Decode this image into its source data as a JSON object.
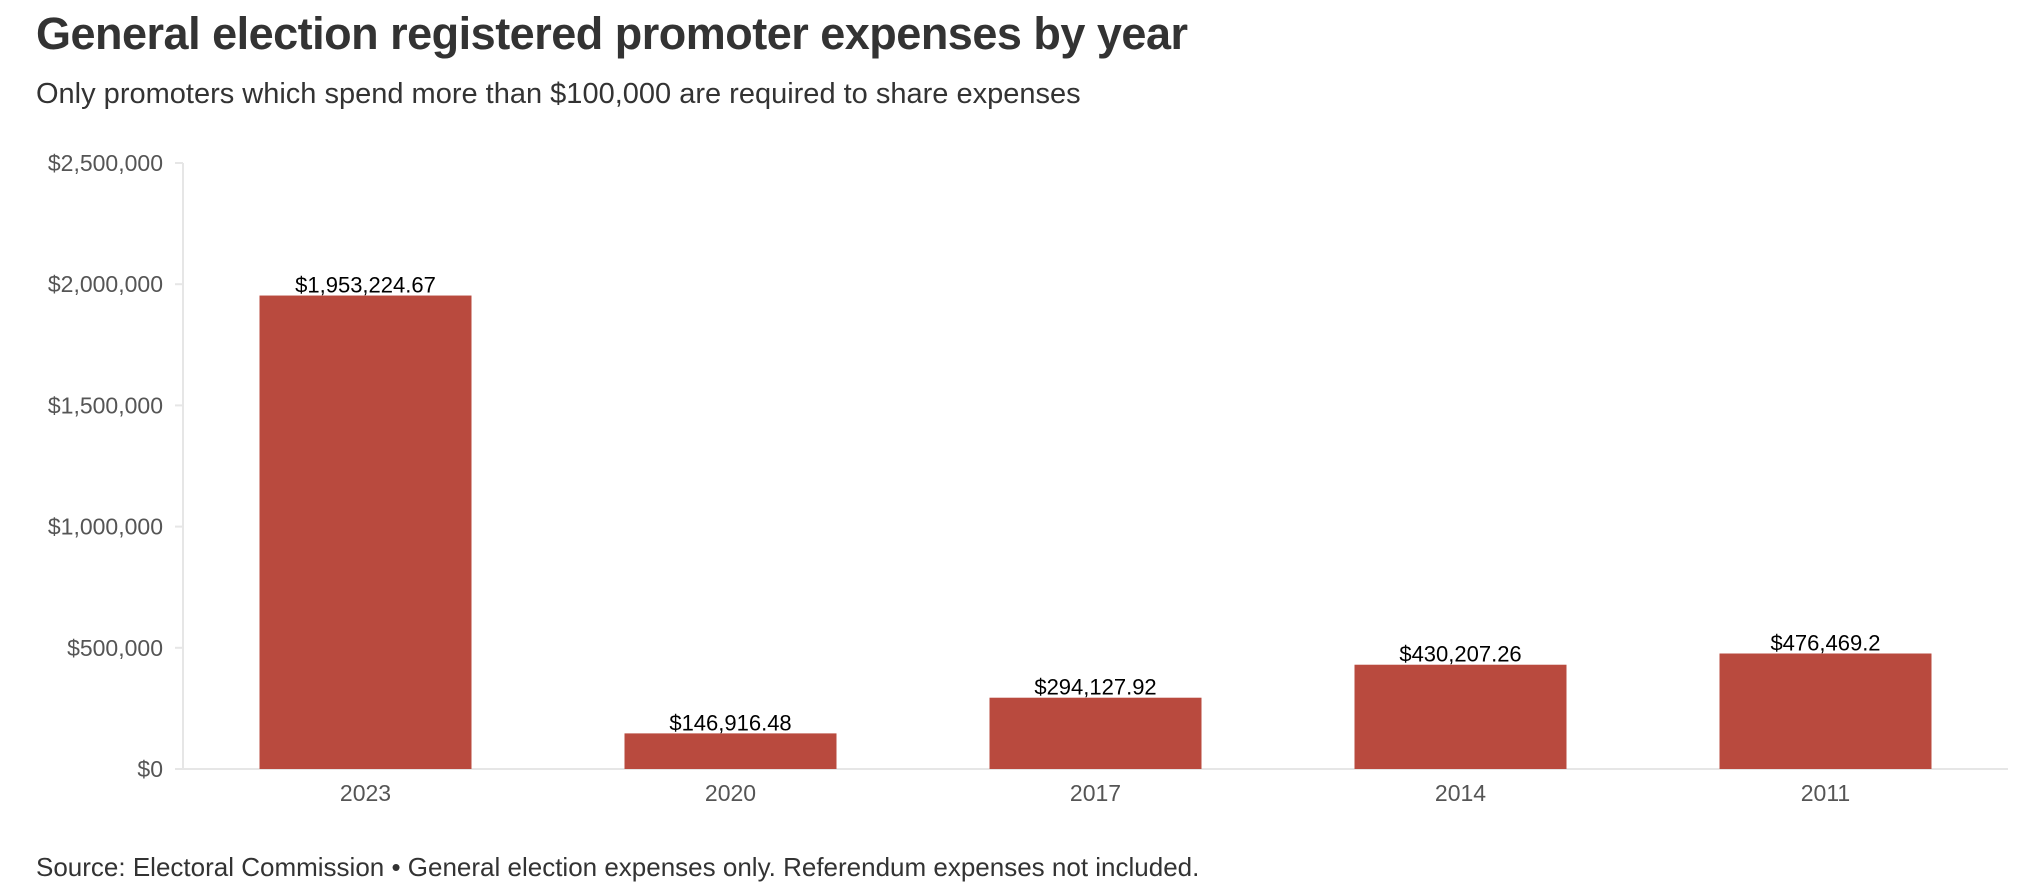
{
  "title": "General election registered promoter expenses by year",
  "subtitle": "Only promoters which spend more than $100,000 are required to share expenses",
  "source": "Source: Electoral Commission • General election expenses only. Referendum expenses not included.",
  "colors": {
    "bar": "#b94a3e",
    "axis": "#e6e6e6",
    "text": "#333333"
  },
  "chart_data": {
    "type": "bar",
    "title": "General election registered promoter expenses by year",
    "subtitle": "Only promoters which spend more than $100,000 are required to share expenses",
    "xlabel": "",
    "ylabel": "",
    "categories": [
      "2023",
      "2020",
      "2017",
      "2014",
      "2011"
    ],
    "values": [
      1953224.67,
      146916.48,
      294127.92,
      430207.26,
      476469.2
    ],
    "value_labels": [
      "$1,953,224.67",
      "$146,916.48",
      "$294,127.92",
      "$430,207.26",
      "$476,469.2"
    ],
    "ylim": [
      0,
      2500000
    ],
    "yticks": [
      0,
      500000,
      1000000,
      1500000,
      2000000,
      2500000
    ],
    "ytick_labels": [
      "$0",
      "$500,000",
      "$1,000,000",
      "$1,500,000",
      "$2,000,000",
      "$2,500,000"
    ],
    "grid": false,
    "legend": "none"
  }
}
